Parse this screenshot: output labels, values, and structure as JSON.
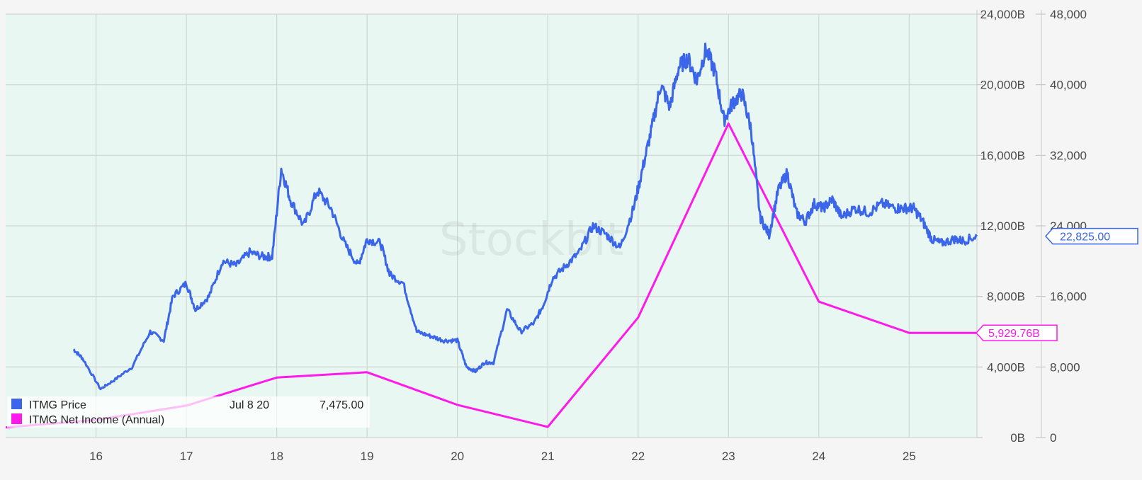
{
  "watermark": "Stockbit",
  "legend": [
    {
      "label": "ITMG Price",
      "color": "#3b66ea",
      "date": "Jul 8 20",
      "value": "7,475.00"
    },
    {
      "label": "ITMG Net Income (Annual)",
      "color": "#ff19ea"
    }
  ],
  "last_value_tags": {
    "price": "22,825.00",
    "net_income": "5,929.76B"
  },
  "chart_data": {
    "type": "line",
    "x_ticks": [
      "16",
      "17",
      "18",
      "19",
      "20",
      "21",
      "22",
      "23",
      "24",
      "25"
    ],
    "x_range": [
      2015.0,
      2025.75
    ],
    "left_axis": {
      "ticks": [
        "24,000B",
        "20,000B",
        "16,000B",
        "12,000B",
        "8,000B",
        "4,000B",
        "0B"
      ],
      "range": [
        0,
        24000
      ]
    },
    "right_axis": {
      "ticks": [
        "48,000",
        "40,000",
        "32,000",
        "24,000",
        "16,000",
        "8,000",
        "0"
      ],
      "range": [
        0,
        48000
      ]
    },
    "series": [
      {
        "name": "ITMG Net Income (Annual)",
        "axis": "left",
        "unit": "B",
        "color": "#ff19ea",
        "x": [
          2015.0,
          2016.0,
          2017.0,
          2018.0,
          2019.0,
          2020.0,
          2021.0,
          2022.0,
          2023.0,
          2024.0,
          2025.0,
          2025.75
        ],
        "values": [
          570,
          1000,
          1810,
          3400,
          3700,
          1850,
          600,
          6800,
          17800,
          7700,
          5930,
          5930
        ]
      },
      {
        "name": "ITMG Price",
        "axis": "right",
        "color": "#3b66ea",
        "x": [
          2015.75,
          2015.85,
          2016.05,
          2016.2,
          2016.4,
          2016.6,
          2016.75,
          2016.85,
          2017.0,
          2017.1,
          2017.25,
          2017.4,
          2017.55,
          2017.7,
          2017.85,
          2017.95,
          2018.05,
          2018.15,
          2018.3,
          2018.45,
          2018.6,
          2018.75,
          2018.9,
          2019.0,
          2019.15,
          2019.25,
          2019.4,
          2019.55,
          2019.7,
          2019.85,
          2020.0,
          2020.1,
          2020.2,
          2020.3,
          2020.4,
          2020.55,
          2020.7,
          2020.85,
          2020.95,
          2021.05,
          2021.2,
          2021.35,
          2021.5,
          2021.65,
          2021.8,
          2021.95,
          2022.05,
          2022.15,
          2022.25,
          2022.35,
          2022.45,
          2022.55,
          2022.65,
          2022.75,
          2022.85,
          2022.95,
          2023.05,
          2023.15,
          2023.25,
          2023.35,
          2023.45,
          2023.55,
          2023.65,
          2023.75,
          2023.85,
          2023.95,
          2024.05,
          2024.15,
          2024.25,
          2024.4,
          2024.55,
          2024.7,
          2024.85,
          2024.95,
          2025.05,
          2025.15,
          2025.25,
          2025.35,
          2025.5,
          2025.6,
          2025.75
        ],
        "values": [
          10000,
          9000,
          5500,
          6500,
          8000,
          12000,
          11000,
          16000,
          17500,
          14500,
          16000,
          20000,
          19500,
          21000,
          20500,
          20500,
          30500,
          27000,
          24000,
          28000,
          26000,
          22000,
          19500,
          22500,
          22000,
          18500,
          17500,
          12000,
          11500,
          11000,
          11000,
          8000,
          7500,
          8500,
          8500,
          14500,
          12000,
          13000,
          15000,
          18000,
          19500,
          21000,
          24000,
          23000,
          21500,
          26000,
          30500,
          35000,
          40000,
          37500,
          42000,
          43000,
          40500,
          44000,
          41500,
          36000,
          38000,
          39000,
          35000,
          25000,
          23000,
          28000,
          30000,
          25500,
          24500,
          26500,
          26000,
          27000,
          25000,
          26000,
          25500,
          26500,
          26000,
          26000,
          26000,
          24500,
          22500,
          22000,
          22500,
          22300,
          22825
        ]
      }
    ],
    "grid": true,
    "legend_position": "bottom-left"
  }
}
